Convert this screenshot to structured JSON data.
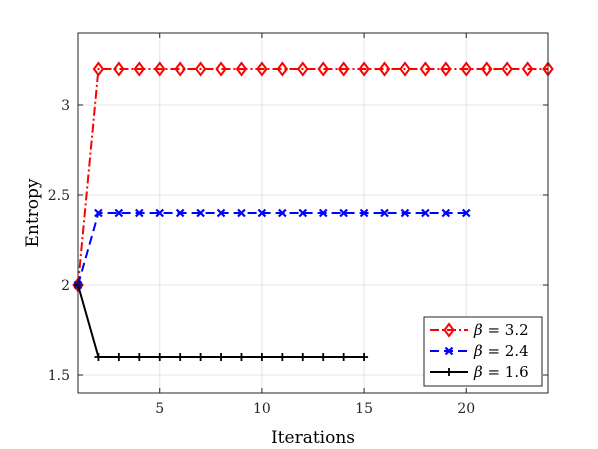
{
  "chart_data": {
    "type": "line",
    "title": "",
    "xlabel": "Iterations",
    "ylabel": "Entropy",
    "xlim": [
      1,
      24
    ],
    "ylim": [
      1.4,
      3.4
    ],
    "x_ticks": [
      5,
      10,
      15,
      20
    ],
    "y_ticks": [
      1.5,
      2,
      2.5,
      3
    ],
    "x_tick_labels": [
      "5",
      "10",
      "15",
      "20"
    ],
    "y_tick_labels": [
      "1.5",
      "2",
      "2.5",
      "3"
    ],
    "grid": true,
    "legend_position": "bottom-right",
    "series": [
      {
        "name": "β = 3.2",
        "legend_symbol": "β",
        "legend_value": "= 3.2",
        "color": "#ff0000",
        "line_style": "dash-dot",
        "marker": "diamond",
        "x": [
          1,
          2,
          3,
          4,
          5,
          6,
          7,
          8,
          9,
          10,
          11,
          12,
          13,
          14,
          15,
          16,
          17,
          18,
          19,
          20,
          21,
          22,
          23,
          24
        ],
        "y": [
          2.0,
          3.2,
          3.2,
          3.2,
          3.2,
          3.2,
          3.2,
          3.2,
          3.2,
          3.2,
          3.2,
          3.2,
          3.2,
          3.2,
          3.2,
          3.2,
          3.2,
          3.2,
          3.2,
          3.2,
          3.2,
          3.2,
          3.2,
          3.2
        ]
      },
      {
        "name": "β = 2.4",
        "legend_symbol": "β",
        "legend_value": "= 2.4",
        "color": "#0000ff",
        "line_style": "dashed",
        "marker": "x",
        "x": [
          1,
          2,
          3,
          4,
          5,
          6,
          7,
          8,
          9,
          10,
          11,
          12,
          13,
          14,
          15,
          16,
          17,
          18,
          19,
          20
        ],
        "y": [
          2.0,
          2.4,
          2.4,
          2.4,
          2.4,
          2.4,
          2.4,
          2.4,
          2.4,
          2.4,
          2.4,
          2.4,
          2.4,
          2.4,
          2.4,
          2.4,
          2.4,
          2.4,
          2.4,
          2.4
        ]
      },
      {
        "name": "β = 1.6",
        "legend_symbol": "β",
        "legend_value": "= 1.6",
        "color": "#000000",
        "line_style": "solid",
        "marker": "plus",
        "x": [
          1,
          2,
          3,
          4,
          5,
          6,
          7,
          8,
          9,
          10,
          11,
          12,
          13,
          14,
          15
        ],
        "y": [
          2.0,
          1.6,
          1.6,
          1.6,
          1.6,
          1.6,
          1.6,
          1.6,
          1.6,
          1.6,
          1.6,
          1.6,
          1.6,
          1.6,
          1.6
        ]
      }
    ]
  }
}
